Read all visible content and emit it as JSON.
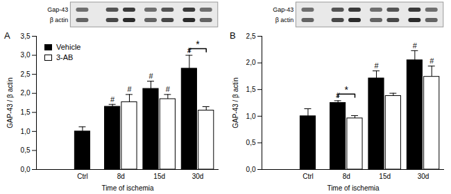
{
  "chart_data": [
    {
      "type": "bar",
      "title": "A",
      "blot_labels": [
        "Gap-43",
        "β actin"
      ],
      "categories": [
        "Ctrl",
        "8d",
        "15d",
        "30d"
      ],
      "x_label": "Time of ischemia",
      "y_label": "GAP-43 / β actin",
      "ylim": [
        0,
        3.5
      ],
      "yticks": [
        {
          "value": 0,
          "label": "0,0"
        },
        {
          "value": 0.5,
          "label": "0,5"
        },
        {
          "value": 1,
          "label": "1,0"
        },
        {
          "value": 1.5,
          "label": "1,5"
        },
        {
          "value": 2,
          "label": "2,0"
        },
        {
          "value": 2.5,
          "label": "2,5"
        },
        {
          "value": 3,
          "label": "3,0"
        },
        {
          "value": 3.5,
          "label": "3,5"
        }
      ],
      "legend": "upper left",
      "series": [
        {
          "name": "Vehicle",
          "color": "#000000",
          "values": [
            1.0,
            1.65,
            2.12,
            2.65
          ],
          "errors": [
            0.12,
            0.06,
            0.2,
            0.35
          ]
        },
        {
          "name": "3-AB",
          "color": "#ffffff",
          "values": [
            null,
            1.77,
            1.85,
            1.55
          ],
          "errors": [
            null,
            0.2,
            0.12,
            0.1
          ]
        }
      ],
      "annotations": [
        {
          "text": "#",
          "category": "8d",
          "series": "Vehicle"
        },
        {
          "text": "#",
          "category": "8d",
          "series": "3-AB"
        },
        {
          "text": "#",
          "category": "15d",
          "series": "Vehicle"
        },
        {
          "text": "#",
          "category": "15d",
          "series": "3-AB"
        },
        {
          "text": "#",
          "category": "30d",
          "series": "Vehicle"
        },
        {
          "text": "*",
          "category": "30d",
          "series": [
            "Vehicle",
            "3-AB"
          ]
        }
      ]
    },
    {
      "type": "bar",
      "title": "B",
      "blot_labels": [
        "Gap-43",
        "β actin"
      ],
      "categories": [
        "Ctrl",
        "8d",
        "15d",
        "30d"
      ],
      "x_label": "Time of ischemia",
      "y_label": "GAP-43 / β actin",
      "ylim": [
        0,
        2.5
      ],
      "yticks": [
        {
          "value": 0,
          "label": "0,0"
        },
        {
          "value": 0.5,
          "label": "0,5"
        },
        {
          "value": 1,
          "label": "1,0"
        },
        {
          "value": 1.5,
          "label": "1,5"
        },
        {
          "value": 2,
          "label": "2,0"
        },
        {
          "value": 2.5,
          "label": "2,5"
        }
      ],
      "series": [
        {
          "name": "Vehicle",
          "color": "#000000",
          "values": [
            1.0,
            1.25,
            1.71,
            2.05
          ],
          "errors": [
            0.14,
            0.04,
            0.14,
            0.18
          ]
        },
        {
          "name": "3-AB",
          "color": "#ffffff",
          "values": [
            null,
            0.96,
            1.38,
            1.74
          ],
          "errors": [
            null,
            0.05,
            0.05,
            0.2
          ]
        }
      ],
      "annotations": [
        {
          "text": "#",
          "category": "8d",
          "series": "Vehicle"
        },
        {
          "text": "#",
          "category": "15d",
          "series": "Vehicle"
        },
        {
          "text": "#",
          "category": "30d",
          "series": "Vehicle"
        },
        {
          "text": "#",
          "category": "30d",
          "series": "3-AB"
        },
        {
          "text": "*",
          "category": "8d",
          "series": [
            "Vehicle",
            "3-AB"
          ]
        }
      ]
    }
  ]
}
